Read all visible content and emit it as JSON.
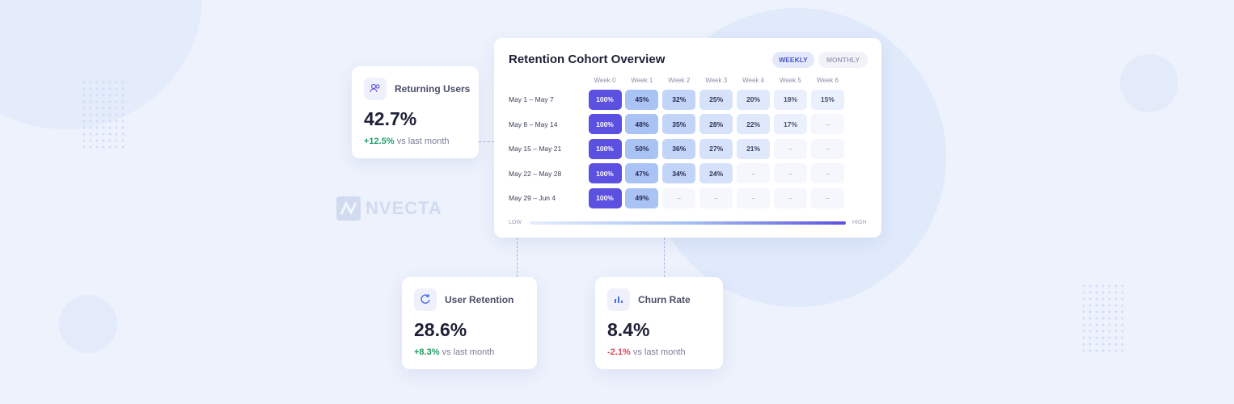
{
  "brand": "NVECTA",
  "cards": [
    {
      "title": "Returning Users",
      "value": "42.7%",
      "change": "+12.5%",
      "change_note": "vs last month",
      "change_color": "#1f9d67"
    },
    {
      "title": "User Retention",
      "value": "28.6%",
      "change": "+8.3%",
      "change_note": "vs last month",
      "change_color": "#1f9d67"
    },
    {
      "title": "Churn Rate",
      "value": "8.4%",
      "change": "-2.1%",
      "change_note": "vs last month",
      "change_color": "#e0485a"
    }
  ],
  "cohort": {
    "title": "Retention Cohort Overview",
    "tabs": [
      "WEEKLY",
      "MONTHLY"
    ],
    "active_tab": 0,
    "columns": [
      "Week 0",
      "Week 1",
      "Week 2",
      "Week 3",
      "Week 4",
      "Week 5",
      "Week 6"
    ],
    "rows": [
      {
        "label": "May 1 – May 7",
        "cells": [
          "100%",
          "45%",
          "32%",
          "25%",
          "20%",
          "18%",
          "15%"
        ]
      },
      {
        "label": "May 8 – May 14",
        "cells": [
          "100%",
          "48%",
          "35%",
          "28%",
          "22%",
          "17%",
          "–"
        ]
      },
      {
        "label": "May 15 – May 21",
        "cells": [
          "100%",
          "50%",
          "36%",
          "27%",
          "21%",
          "–",
          "–"
        ]
      },
      {
        "label": "May 22 – May 28",
        "cells": [
          "100%",
          "47%",
          "34%",
          "24%",
          "–",
          "–",
          "–"
        ]
      },
      {
        "label": "May 29 – Jun 4",
        "cells": [
          "100%",
          "49%",
          "–",
          "–",
          "–",
          "–",
          "–"
        ]
      }
    ],
    "legend": {
      "low": "LOW",
      "high": "HIGH"
    }
  }
}
